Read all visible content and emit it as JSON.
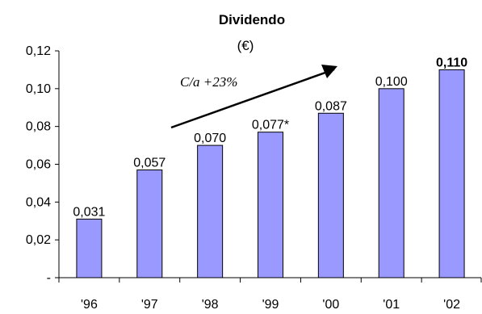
{
  "chart_data": {
    "type": "bar",
    "title": "Dividendo",
    "subtitle": "(€)",
    "categories": [
      "'96",
      "'97",
      "'98",
      "'99",
      "'00",
      "'01",
      "'02"
    ],
    "values": [
      0.031,
      0.057,
      0.07,
      0.077,
      0.087,
      0.1,
      0.11
    ],
    "data_labels": [
      "0,031",
      "0,057",
      "0,070",
      "0,077*",
      "0,087",
      "0,100",
      "0,110"
    ],
    "bold_label_index": 6,
    "ylim": [
      0,
      0.12
    ],
    "y_ticks": [
      {
        "value": 0,
        "label": "-"
      },
      {
        "value": 0.02,
        "label": "0,02"
      },
      {
        "value": 0.04,
        "label": "0,04"
      },
      {
        "value": 0.06,
        "label": "0,06"
      },
      {
        "value": 0.08,
        "label": "0,08"
      },
      {
        "value": 0.1,
        "label": "0,10"
      },
      {
        "value": 0.12,
        "label": "0,12"
      }
    ],
    "xlabel": "",
    "ylabel": "",
    "grid": false,
    "bar_color": "#9999ff",
    "annotation": {
      "text": "C/a +23%"
    }
  }
}
